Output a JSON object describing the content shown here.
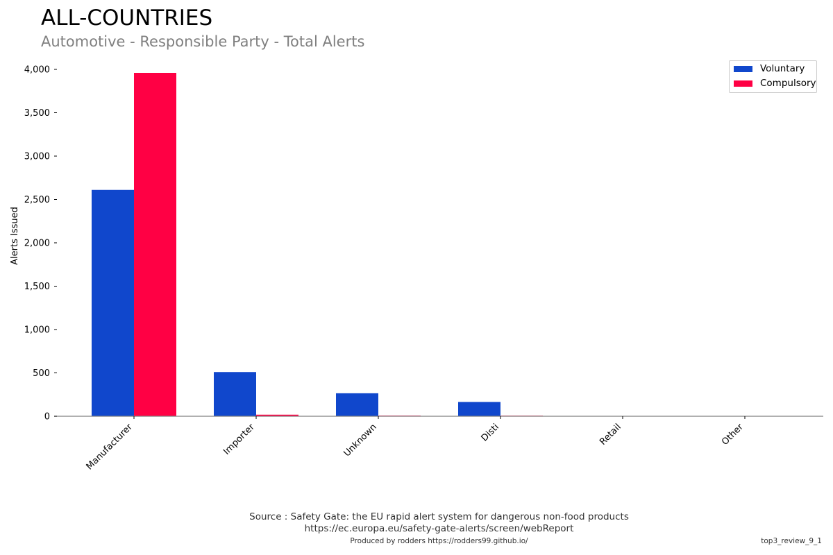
{
  "title": "ALL-COUNTRIES",
  "subtitle": "Automotive - Responsible Party - Total Alerts",
  "footer": {
    "source_line1": "Source : Safety Gate: the EU rapid alert system for dangerous non-food products",
    "source_line2": "https://ec.europa.eu/safety-gate-alerts/screen/webReport",
    "credit": "Produced by rodders https://rodders99.github.io/",
    "tag": "top3_review_9_1"
  },
  "chart_data": {
    "type": "bar",
    "title": "ALL-COUNTRIES",
    "subtitle": "Automotive - Responsible Party - Total Alerts",
    "xlabel": "",
    "ylabel": "Alerts Issued",
    "categories": [
      "Manufacturer",
      "Importer",
      "Unknown",
      "Disti",
      "Retail",
      "Other"
    ],
    "series": [
      {
        "name": "Voluntary",
        "color": "#1047cc",
        "values": [
          2610,
          510,
          265,
          165,
          0,
          0
        ]
      },
      {
        "name": "Compulsory",
        "color": "#ff0044",
        "values": [
          3960,
          18,
          8,
          7,
          1,
          1
        ]
      }
    ],
    "ylim": [
      0,
      4000
    ],
    "yticks": [
      0,
      500,
      1000,
      1500,
      2000,
      2500,
      3000,
      3500,
      4000
    ],
    "ytick_labels": [
      "0",
      "500",
      "1,000",
      "1,500",
      "2,000",
      "2,500",
      "3,000",
      "3,500",
      "4,000"
    ],
    "grid": false,
    "legend_position": "top-right"
  }
}
